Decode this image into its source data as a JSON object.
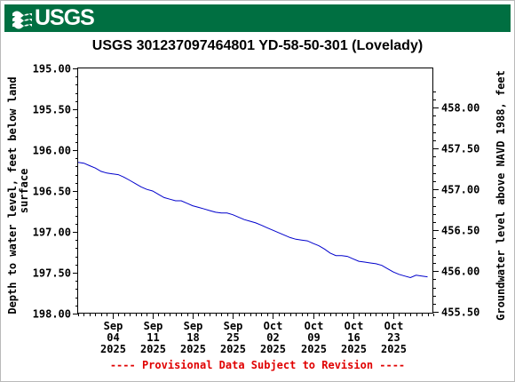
{
  "header": {
    "logo_text": "USGS",
    "logo_icon": "usgs-wave-icon",
    "banner_color": "#006f41"
  },
  "footnote": "---- Provisional Data Subject to Revision ----",
  "footnote_color": "#e00000",
  "chart_data": {
    "type": "line",
    "title": "USGS 301237097464801 YD-58-50-301 (Lovelady)",
    "ylabel_left": [
      "Depth to water level, feet below land",
      "surface"
    ],
    "ylabel_right": "Groundwater level above NAVD 1988, feet",
    "left_axis": {
      "min": 195.0,
      "max": 198.0,
      "inverted": true,
      "ticks": [
        195.0,
        195.5,
        196.0,
        196.5,
        197.0,
        197.5,
        198.0
      ],
      "tick_labels": [
        "195.00",
        "195.50",
        "196.00",
        "196.50",
        "197.00",
        "197.50",
        "198.00"
      ]
    },
    "right_axis": {
      "ticks": [
        458.0,
        457.5,
        457.0,
        456.5,
        456.0,
        455.5
      ],
      "tick_labels": [
        "458.00",
        "457.50",
        "457.00",
        "456.50",
        "456.00",
        "455.50"
      ]
    },
    "x_axis": {
      "start": "2025-08-29",
      "end": "2025-10-30",
      "ticks": [
        {
          "date": "2025-09-04",
          "label": [
            "Sep",
            "04",
            "2025"
          ]
        },
        {
          "date": "2025-09-11",
          "label": [
            "Sep",
            "11",
            "2025"
          ]
        },
        {
          "date": "2025-09-18",
          "label": [
            "Sep",
            "18",
            "2025"
          ]
        },
        {
          "date": "2025-09-25",
          "label": [
            "Sep",
            "25",
            "2025"
          ]
        },
        {
          "date": "2025-10-02",
          "label": [
            "Oct",
            "02",
            "2025"
          ]
        },
        {
          "date": "2025-10-09",
          "label": [
            "Oct",
            "09",
            "2025"
          ]
        },
        {
          "date": "2025-10-16",
          "label": [
            "Oct",
            "16",
            "2025"
          ]
        },
        {
          "date": "2025-10-23",
          "label": [
            "Oct",
            "23",
            "2025"
          ]
        }
      ]
    },
    "grid": false,
    "series": [
      {
        "color": "#0000cc",
        "points": [
          [
            "2025-08-29",
            196.15
          ],
          [
            "2025-08-30",
            196.16
          ],
          [
            "2025-08-31",
            196.19
          ],
          [
            "2025-09-01",
            196.22
          ],
          [
            "2025-09-02",
            196.26
          ],
          [
            "2025-09-03",
            196.28
          ],
          [
            "2025-09-04",
            196.29
          ],
          [
            "2025-09-05",
            196.3
          ],
          [
            "2025-09-06",
            196.33
          ],
          [
            "2025-09-07",
            196.37
          ],
          [
            "2025-09-08",
            196.41
          ],
          [
            "2025-09-09",
            196.45
          ],
          [
            "2025-09-10",
            196.48
          ],
          [
            "2025-09-11",
            196.5
          ],
          [
            "2025-09-12",
            196.54
          ],
          [
            "2025-09-13",
            196.58
          ],
          [
            "2025-09-14",
            196.6
          ],
          [
            "2025-09-15",
            196.62
          ],
          [
            "2025-09-16",
            196.62
          ],
          [
            "2025-09-17",
            196.65
          ],
          [
            "2025-09-18",
            196.68
          ],
          [
            "2025-09-19",
            196.7
          ],
          [
            "2025-09-20",
            196.72
          ],
          [
            "2025-09-21",
            196.74
          ],
          [
            "2025-09-22",
            196.76
          ],
          [
            "2025-09-23",
            196.77
          ],
          [
            "2025-09-24",
            196.77
          ],
          [
            "2025-09-25",
            196.79
          ],
          [
            "2025-09-26",
            196.82
          ],
          [
            "2025-09-27",
            196.85
          ],
          [
            "2025-09-28",
            196.87
          ],
          [
            "2025-09-29",
            196.89
          ],
          [
            "2025-09-30",
            196.92
          ],
          [
            "2025-10-01",
            196.95
          ],
          [
            "2025-10-02",
            196.98
          ],
          [
            "2025-10-03",
            197.01
          ],
          [
            "2025-10-04",
            197.04
          ],
          [
            "2025-10-05",
            197.07
          ],
          [
            "2025-10-06",
            197.09
          ],
          [
            "2025-10-07",
            197.1
          ],
          [
            "2025-10-08",
            197.11
          ],
          [
            "2025-10-09",
            197.14
          ],
          [
            "2025-10-10",
            197.17
          ],
          [
            "2025-10-11",
            197.21
          ],
          [
            "2025-10-12",
            197.26
          ],
          [
            "2025-10-13",
            197.29
          ],
          [
            "2025-10-14",
            197.29
          ],
          [
            "2025-10-15",
            197.3
          ],
          [
            "2025-10-16",
            197.33
          ],
          [
            "2025-10-17",
            197.36
          ],
          [
            "2025-10-18",
            197.37
          ],
          [
            "2025-10-19",
            197.38
          ],
          [
            "2025-10-20",
            197.39
          ],
          [
            "2025-10-21",
            197.41
          ],
          [
            "2025-10-22",
            197.45
          ],
          [
            "2025-10-23",
            197.49
          ],
          [
            "2025-10-24",
            197.52
          ],
          [
            "2025-10-25",
            197.54
          ],
          [
            "2025-10-26",
            197.56
          ],
          [
            "2025-10-27",
            197.53
          ],
          [
            "2025-10-28",
            197.54
          ],
          [
            "2025-10-29",
            197.55
          ]
        ]
      }
    ]
  }
}
